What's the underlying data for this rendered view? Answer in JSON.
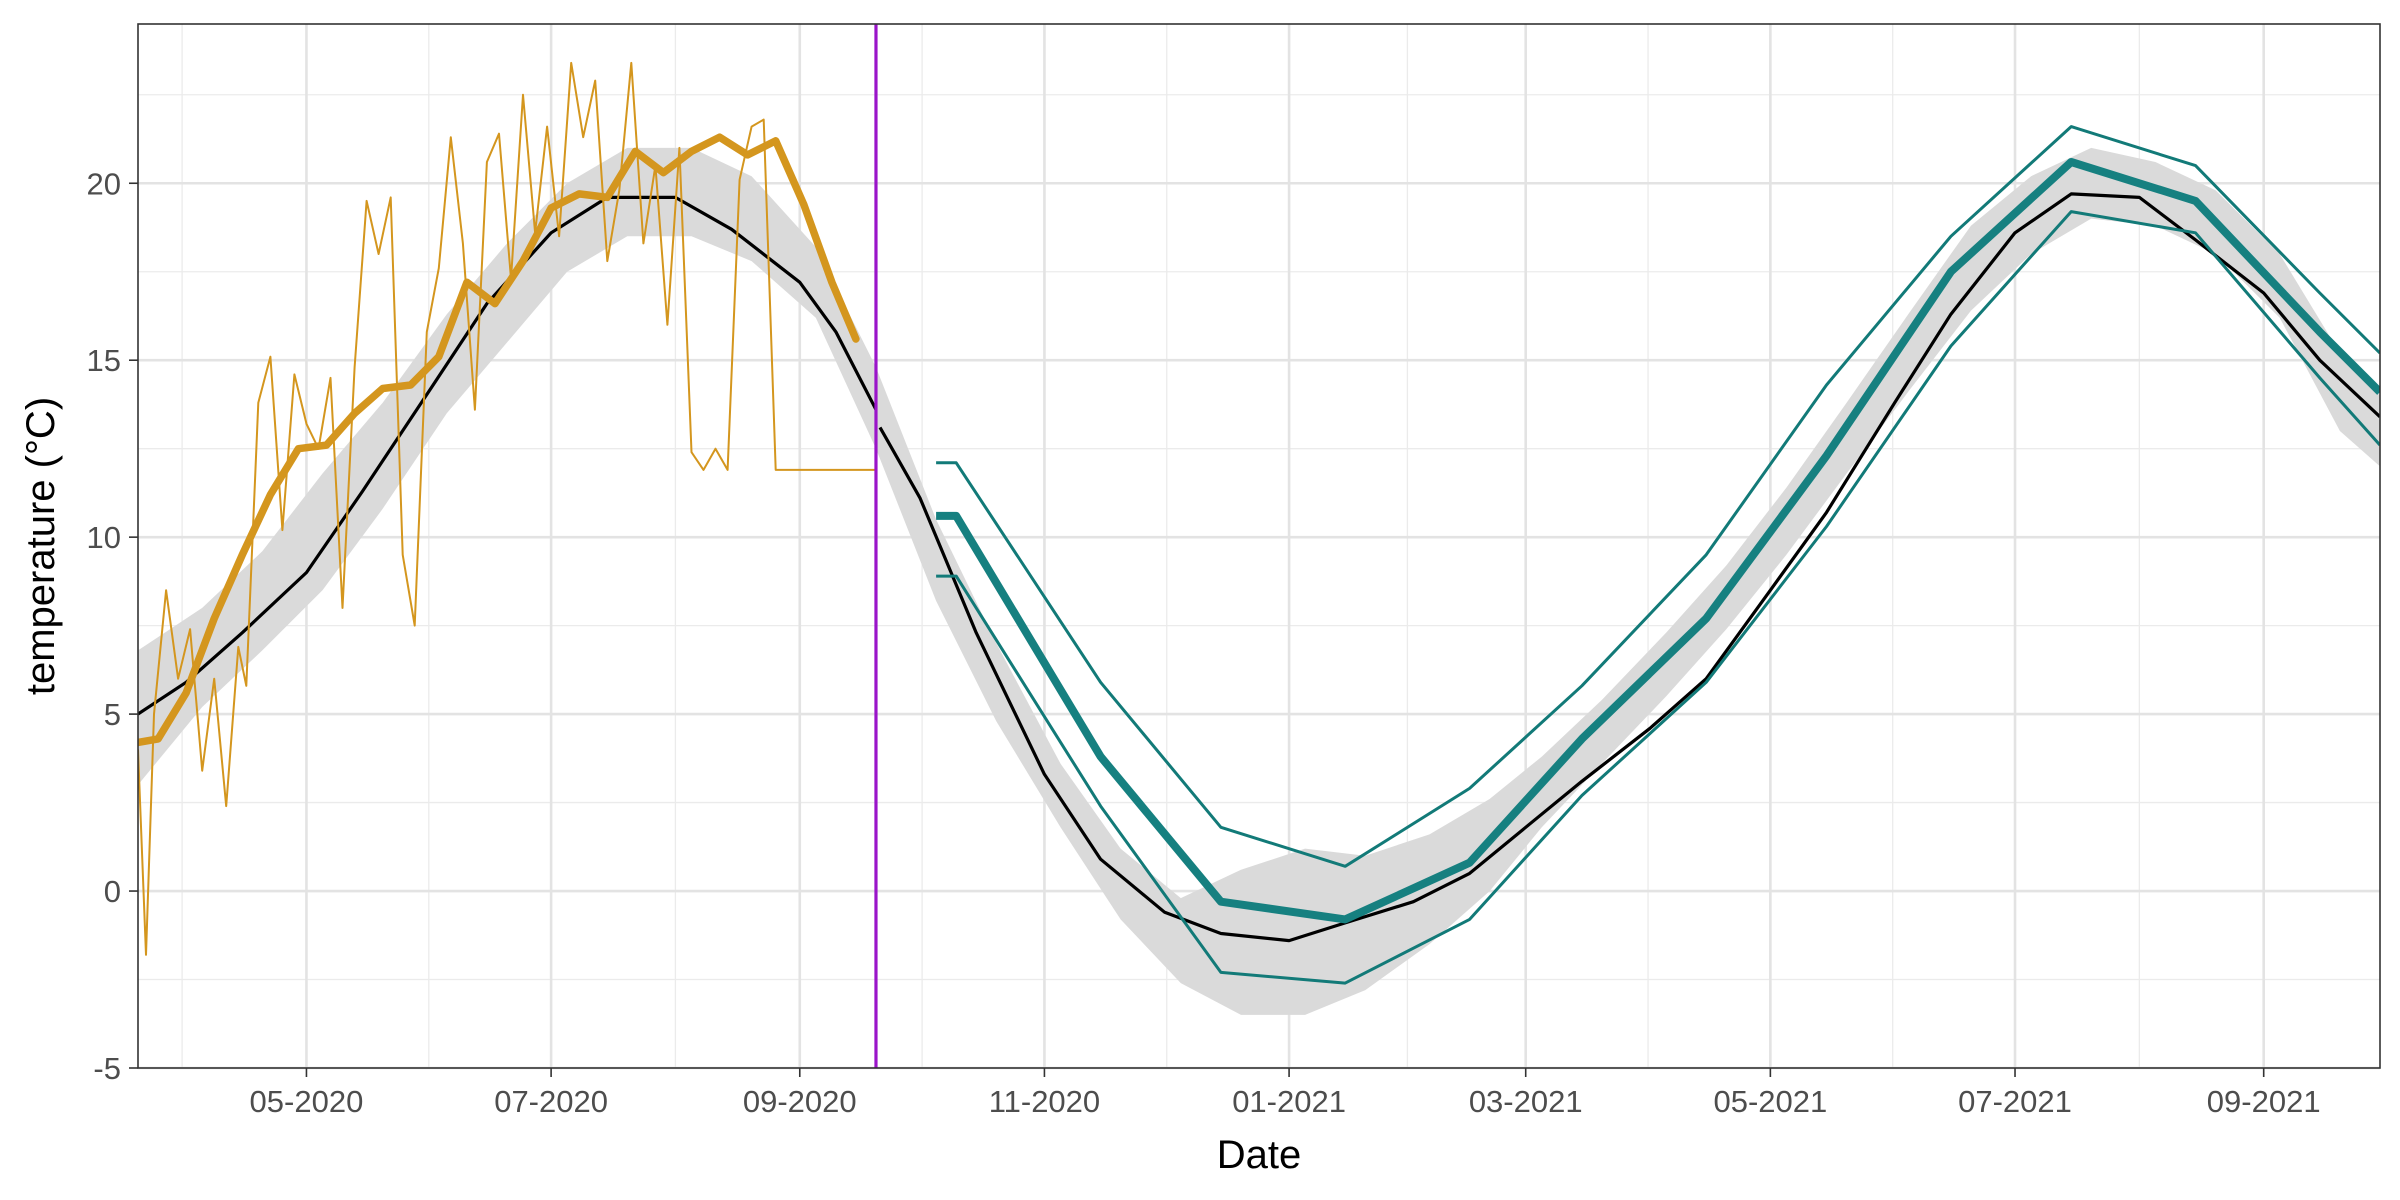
{
  "chart_data": {
    "type": "line",
    "title": "",
    "xlabel": "Date",
    "ylabel": "temperature (°C)",
    "xlim": [
      "2020-03-20",
      "2021-09-30"
    ],
    "ylim": [
      -5,
      24.5
    ],
    "grid": true,
    "x_ticks": [
      {
        "date": "2020-05-01",
        "label": "05-2020"
      },
      {
        "date": "2020-07-01",
        "label": "07-2020"
      },
      {
        "date": "2020-09-01",
        "label": "09-2020"
      },
      {
        "date": "2020-11-01",
        "label": "11-2020"
      },
      {
        "date": "2021-01-01",
        "label": "01-2021"
      },
      {
        "date": "2021-03-01",
        "label": "03-2021"
      },
      {
        "date": "2021-05-01",
        "label": "05-2021"
      },
      {
        "date": "2021-07-01",
        "label": "07-2021"
      },
      {
        "date": "2021-09-01",
        "label": "09-2021"
      }
    ],
    "y_ticks": [
      {
        "value": -5,
        "label": "-5"
      },
      {
        "value": 0,
        "label": "0"
      },
      {
        "value": 5,
        "label": "5"
      },
      {
        "value": 10,
        "label": "10"
      },
      {
        "value": 15,
        "label": "15"
      },
      {
        "value": 20,
        "label": "20"
      }
    ],
    "vertical_line": {
      "date": "2020-09-20",
      "color": "#9a14c9"
    },
    "series": [
      {
        "role": "climatology_band",
        "color": "#dadada",
        "x": [
          "2020-03-20",
          "2020-04-05",
          "2020-04-20",
          "2020-05-05",
          "2020-05-20",
          "2020-06-05",
          "2020-06-20",
          "2020-07-05",
          "2020-07-20",
          "2020-08-05",
          "2020-08-20",
          "2020-09-05",
          "2020-09-20",
          "2020-10-05",
          "2020-10-20",
          "2020-11-05",
          "2020-11-20",
          "2020-12-05",
          "2020-12-20",
          "2021-01-05",
          "2021-01-20",
          "2021-02-05",
          "2021-02-20",
          "2021-03-05",
          "2021-03-20",
          "2021-04-05",
          "2021-04-20",
          "2021-05-05",
          "2021-05-20",
          "2021-06-05",
          "2021-06-20",
          "2021-07-05",
          "2021-07-20",
          "2021-08-05",
          "2021-08-20",
          "2021-09-05",
          "2021-09-20",
          "2021-09-30"
        ],
        "lower": [
          3.0,
          5.2,
          6.8,
          8.5,
          10.8,
          13.5,
          15.5,
          17.5,
          18.5,
          18.5,
          17.8,
          16.2,
          12.5,
          8.2,
          4.8,
          1.8,
          -0.8,
          -2.6,
          -3.5,
          -3.5,
          -2.8,
          -1.5,
          0.0,
          1.8,
          3.6,
          5.5,
          7.4,
          9.5,
          11.8,
          14.2,
          16.4,
          18.0,
          19.0,
          18.8,
          18.0,
          16.2,
          13.0,
          12.0
        ],
        "upper": [
          6.8,
          8.0,
          9.6,
          11.8,
          13.8,
          16.3,
          18.3,
          20.0,
          21.0,
          21.0,
          20.2,
          18.2,
          14.8,
          10.5,
          7.0,
          3.6,
          1.2,
          -0.2,
          0.6,
          1.2,
          1.0,
          1.6,
          2.6,
          3.8,
          5.4,
          7.3,
          9.2,
          11.4,
          13.8,
          16.4,
          18.8,
          20.2,
          21.0,
          20.6,
          19.8,
          18.0,
          15.2,
          14.0
        ]
      },
      {
        "role": "climatology_mean",
        "color": "#000000",
        "x": [
          "2020-03-20",
          "2020-04-01",
          "2020-04-15",
          "2020-05-01",
          "2020-05-15",
          "2020-06-01",
          "2020-06-15",
          "2020-07-01",
          "2020-07-15",
          "2020-08-01",
          "2020-08-15",
          "2020-09-01",
          "2020-09-10",
          "2020-09-20",
          "2020-09-21",
          "2020-10-01",
          "2020-10-15",
          "2020-11-01",
          "2020-11-15",
          "2020-12-01",
          "2020-12-15",
          "2021-01-01",
          "2021-01-15",
          "2021-02-01",
          "2021-02-15",
          "2021-03-01",
          "2021-03-15",
          "2021-04-01",
          "2021-04-15",
          "2021-05-01",
          "2021-05-15",
          "2021-06-01",
          "2021-06-15",
          "2021-07-01",
          "2021-07-15",
          "2021-08-01",
          "2021-08-15",
          "2021-09-01",
          "2021-09-15",
          "2021-09-30"
        ],
        "y": [
          5.0,
          5.9,
          7.3,
          9.0,
          11.3,
          14.2,
          16.6,
          18.6,
          19.6,
          19.6,
          18.7,
          17.2,
          15.8,
          13.6,
          13.1,
          11.1,
          7.3,
          3.3,
          0.9,
          -0.6,
          -1.2,
          -1.4,
          -0.9,
          -0.3,
          0.5,
          1.8,
          3.1,
          4.6,
          6.0,
          8.5,
          10.7,
          13.8,
          16.3,
          18.6,
          19.7,
          19.6,
          18.4,
          16.9,
          15.0,
          13.4
        ]
      },
      {
        "role": "observed_daily",
        "color": "#d4961e",
        "x": [
          "2020-03-20",
          "2020-03-22",
          "2020-03-24",
          "2020-03-27",
          "2020-03-30",
          "2020-04-02",
          "2020-04-05",
          "2020-04-08",
          "2020-04-11",
          "2020-04-14",
          "2020-04-16",
          "2020-04-19",
          "2020-04-22",
          "2020-04-25",
          "2020-04-28",
          "2020-05-01",
          "2020-05-04",
          "2020-05-07",
          "2020-05-10",
          "2020-05-13",
          "2020-05-16",
          "2020-05-19",
          "2020-05-22",
          "2020-05-25",
          "2020-05-28",
          "2020-05-31",
          "2020-06-03",
          "2020-06-06",
          "2020-06-09",
          "2020-06-12",
          "2020-06-15",
          "2020-06-18",
          "2020-06-21",
          "2020-06-24",
          "2020-06-27",
          "2020-06-30",
          "2020-07-03",
          "2020-07-06",
          "2020-07-09",
          "2020-07-12",
          "2020-07-15",
          "2020-07-18",
          "2020-07-21",
          "2020-07-24",
          "2020-07-27",
          "2020-07-30",
          "2020-08-02",
          "2020-08-05",
          "2020-08-08",
          "2020-08-11",
          "2020-08-14",
          "2020-08-17",
          "2020-08-20",
          "2020-08-23",
          "2020-08-26",
          "2020-08-29",
          "2020-09-01",
          "2020-09-03",
          "2020-09-05",
          "2020-09-06",
          "2020-09-07",
          "2020-09-08",
          "2020-09-20"
        ],
        "y": [
          4.0,
          -1.8,
          5.0,
          8.5,
          6.0,
          7.4,
          3.4,
          6.0,
          2.4,
          6.9,
          5.8,
          13.8,
          15.1,
          10.2,
          14.6,
          13.2,
          12.5,
          14.5,
          8.0,
          14.8,
          19.5,
          18.0,
          19.6,
          9.5,
          7.5,
          15.8,
          17.6,
          21.3,
          18.3,
          13.6,
          20.6,
          21.4,
          17.3,
          22.5,
          18.6,
          21.6,
          18.5,
          23.4,
          21.3,
          22.9,
          17.8,
          19.8,
          23.4,
          18.3,
          20.5,
          16.0,
          21.0,
          12.4,
          11.9,
          12.5,
          11.9,
          20.1,
          21.6,
          21.8,
          11.9,
          11.9,
          11.9,
          11.9,
          11.9,
          11.9,
          11.9,
          11.9,
          11.9
        ]
      },
      {
        "role": "observed_smooth",
        "color": "#d4961e",
        "x": [
          "2020-03-20",
          "2020-03-25",
          "2020-04-01",
          "2020-04-08",
          "2020-04-15",
          "2020-04-22",
          "2020-04-29",
          "2020-05-06",
          "2020-05-13",
          "2020-05-20",
          "2020-05-27",
          "2020-06-03",
          "2020-06-10",
          "2020-06-17",
          "2020-06-24",
          "2020-07-01",
          "2020-07-08",
          "2020-07-15",
          "2020-07-22",
          "2020-07-29",
          "2020-08-05",
          "2020-08-12",
          "2020-08-19",
          "2020-08-26",
          "2020-09-02",
          "2020-09-09",
          "2020-09-15"
        ],
        "y": [
          4.2,
          4.3,
          5.6,
          7.7,
          9.5,
          11.2,
          12.5,
          12.6,
          13.5,
          14.2,
          14.3,
          15.1,
          17.2,
          16.6,
          17.8,
          19.3,
          19.7,
          19.6,
          20.9,
          20.3,
          20.9,
          21.3,
          20.8,
          21.2,
          19.4,
          17.2,
          15.6
        ]
      },
      {
        "role": "forecast_upper",
        "color": "#127a78",
        "x": [
          "2020-10-05",
          "2020-10-10",
          "2020-11-15",
          "2020-12-15",
          "2021-01-15",
          "2021-02-15",
          "2021-03-15",
          "2021-04-15",
          "2021-05-15",
          "2021-06-15",
          "2021-07-15",
          "2021-08-15",
          "2021-09-15",
          "2021-09-30"
        ],
        "y": [
          12.1,
          12.1,
          5.9,
          1.8,
          0.7,
          2.9,
          5.8,
          9.5,
          14.3,
          18.5,
          21.6,
          20.5,
          16.9,
          15.2
        ]
      },
      {
        "role": "forecast_mean",
        "color": "#168080",
        "x": [
          "2020-10-05",
          "2020-10-10",
          "2020-11-15",
          "2020-12-15",
          "2021-01-15",
          "2021-02-15",
          "2021-03-15",
          "2021-04-15",
          "2021-05-15",
          "2021-06-15",
          "2021-07-15",
          "2021-08-15",
          "2021-09-15",
          "2021-09-30"
        ],
        "y": [
          10.6,
          10.6,
          3.8,
          -0.3,
          -0.8,
          0.8,
          4.3,
          7.7,
          12.3,
          17.5,
          20.6,
          19.5,
          15.8,
          14.1
        ]
      },
      {
        "role": "forecast_lower",
        "color": "#127a78",
        "x": [
          "2020-10-05",
          "2020-10-10",
          "2020-11-15",
          "2020-12-15",
          "2021-01-15",
          "2021-02-15",
          "2021-03-15",
          "2021-04-15",
          "2021-05-15",
          "2021-06-15",
          "2021-07-15",
          "2021-08-15",
          "2021-09-15",
          "2021-09-30"
        ],
        "y": [
          8.9,
          8.9,
          2.4,
          -2.3,
          -2.6,
          -0.8,
          2.7,
          5.9,
          10.3,
          15.4,
          19.2,
          18.6,
          14.5,
          12.6
        ]
      }
    ]
  }
}
